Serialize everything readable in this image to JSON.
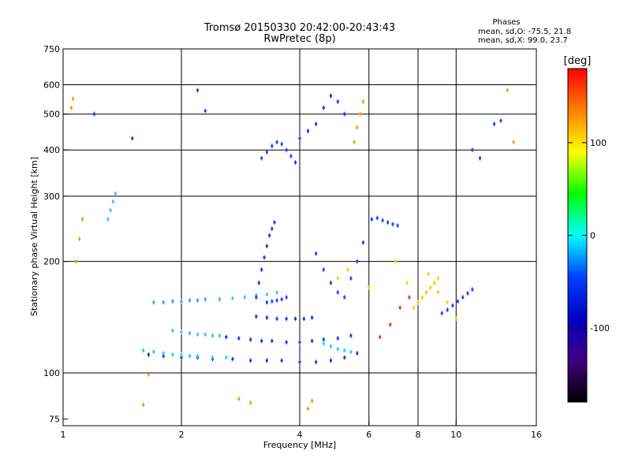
{
  "chart_data": {
    "type": "scatter",
    "title": "Tromsø 20150330 20:42:00-20:43:43",
    "subtitle": "RwPretec (8p)",
    "xlabel": "Frequency [MHz]",
    "ylabel": "Stationary phase Virtual Height [km]",
    "x_scale": "log",
    "y_scale": "log",
    "xlim": [
      1,
      16
    ],
    "ylim": [
      72,
      750
    ],
    "x_ticks": [
      1,
      2,
      4,
      6,
      8,
      10,
      16
    ],
    "y_ticks": [
      75,
      100,
      200,
      300,
      400,
      500,
      600,
      750
    ],
    "x_gridlines": [
      2,
      4,
      6,
      8,
      10
    ],
    "y_gridlines": [
      100,
      200,
      300,
      400,
      500,
      600
    ],
    "grid": true,
    "stats": {
      "heading": "Phases",
      "line_o": "mean, sd,O: -75.5, 21.8",
      "line_x": "mean, sd,X:  99.0, 23.7"
    },
    "colorbar": {
      "label": "[deg]",
      "range": [
        -180,
        180
      ],
      "ticks": [
        100,
        0,
        -100
      ],
      "colors": [
        "#ff0000",
        "#ff8000",
        "#ffff00",
        "#00ff00",
        "#00ffff",
        "#0040ff",
        "#0000c0",
        "#400080",
        "#000000"
      ]
    },
    "series": [
      {
        "color": "#1a33ff",
        "x": [
          1.65,
          1.8,
          2.0,
          2.2,
          2.4,
          2.7,
          3.0,
          3.3,
          3.6,
          4.0,
          4.4,
          4.8,
          5.2,
          5.6
        ],
        "y": [
          112,
          111,
          110,
          110,
          109,
          109,
          108,
          108,
          108,
          107,
          107,
          108,
          110,
          113
        ]
      },
      {
        "color": "#20d0ff",
        "x": [
          1.6,
          1.7,
          1.8,
          1.9,
          2.0,
          2.1,
          2.2,
          2.4,
          2.6
        ],
        "y": [
          115,
          114,
          113,
          112,
          112,
          111,
          111,
          110,
          110
        ]
      },
      {
        "color": "#1a33ff",
        "x": [
          2.6,
          2.8,
          3.0,
          3.2,
          3.4,
          3.7,
          4.0,
          4.3,
          4.6,
          5.0,
          5.4
        ],
        "y": [
          125,
          124,
          123,
          122,
          122,
          121,
          121,
          122,
          123,
          124,
          126
        ]
      },
      {
        "color": "#40c0ff",
        "x": [
          1.9,
          2.0,
          2.1,
          2.2,
          2.3,
          2.4,
          2.5
        ],
        "y": [
          130,
          129,
          128,
          127,
          127,
          126,
          126
        ]
      },
      {
        "color": "#1a33ff",
        "x": [
          3.1,
          3.3,
          3.5,
          3.7,
          3.9,
          4.1,
          4.3
        ],
        "y": [
          142,
          141,
          140,
          140,
          140,
          140,
          141
        ]
      },
      {
        "color": "#30a0ff",
        "x": [
          1.7,
          1.8,
          1.9,
          2.0,
          2.1,
          2.2,
          2.3,
          2.5
        ],
        "y": [
          155,
          155,
          156,
          156,
          157,
          157,
          158,
          158
        ]
      },
      {
        "color": "#40c0ff",
        "x": [
          2.5,
          2.7,
          2.9,
          3.1,
          3.3,
          3.5
        ],
        "y": [
          158,
          159,
          160,
          162,
          163,
          165
        ]
      },
      {
        "color": "#2040ff",
        "x": [
          3.3,
          3.4,
          3.5,
          3.6,
          3.7
        ],
        "y": [
          155,
          156,
          157,
          158,
          160
        ]
      },
      {
        "color": "#1a33ff",
        "x": [
          3.1,
          3.15,
          3.2,
          3.25,
          3.3,
          3.35,
          3.4,
          3.45
        ],
        "y": [
          160,
          175,
          190,
          205,
          220,
          235,
          245,
          255
        ]
      },
      {
        "color": "#2040ff",
        "x": [
          3.2,
          3.3,
          3.4,
          3.5,
          3.6,
          3.7,
          3.8,
          3.9
        ],
        "y": [
          380,
          395,
          410,
          420,
          415,
          400,
          385,
          370
        ]
      },
      {
        "color": "#1a33ff",
        "x": [
          4.0,
          4.2,
          4.4,
          4.6,
          4.8,
          5.0,
          5.2
        ],
        "y": [
          430,
          450,
          470,
          520,
          560,
          540,
          500
        ]
      },
      {
        "color": "#ff9900",
        "x": [
          5.5,
          5.6,
          5.7,
          5.8
        ],
        "y": [
          420,
          460,
          500,
          540
        ]
      },
      {
        "color": "#ffcc00",
        "x": [
          7.8,
          8.0,
          8.2,
          8.4,
          8.6,
          8.8,
          9.0
        ],
        "y": [
          150,
          155,
          160,
          165,
          170,
          175,
          180
        ]
      },
      {
        "color": "#2040ff",
        "x": [
          9.2,
          9.5,
          9.8,
          10.1,
          10.4,
          10.7,
          11.0
        ],
        "y": [
          145,
          148,
          152,
          156,
          160,
          164,
          168
        ]
      },
      {
        "color": "#ff3300",
        "x": [
          6.4,
          6.8,
          7.2,
          7.6
        ],
        "y": [
          125,
          135,
          150,
          160
        ]
      },
      {
        "color": "#2040ff",
        "x": [
          6.1,
          6.3,
          6.5,
          6.7,
          6.9,
          7.1
        ],
        "y": [
          260,
          262,
          258,
          255,
          252,
          250
        ]
      },
      {
        "color": "#ff9900",
        "x": [
          1.05,
          1.06,
          1.08,
          1.1,
          1.12
        ],
        "y": [
          520,
          550,
          200,
          230,
          260
        ]
      },
      {
        "color": "#40c0ff",
        "x": [
          1.3,
          1.32,
          1.34,
          1.36
        ],
        "y": [
          260,
          275,
          290,
          305
        ]
      },
      {
        "color": "#ff9900",
        "x": [
          1.6,
          1.65,
          4.2,
          4.3,
          13.5,
          14.0,
          2.8,
          3.0
        ],
        "y": [
          82,
          99,
          80,
          84,
          580,
          420,
          85,
          83
        ]
      },
      {
        "color": "#2040ff",
        "x": [
          1.2,
          1.5,
          2.2,
          2.3,
          12.5,
          13.0,
          11.0,
          11.5
        ],
        "y": [
          500,
          430,
          580,
          510,
          470,
          480,
          400,
          380
        ]
      },
      {
        "color": "#ffcc00",
        "x": [
          5.0,
          5.3,
          6.0,
          7.0,
          7.5,
          8.5,
          9.0,
          9.5,
          10.0
        ],
        "y": [
          180,
          190,
          170,
          200,
          175,
          185,
          165,
          155,
          140
        ]
      },
      {
        "color": "#20d0ff",
        "x": [
          4.6,
          4.8,
          5.0,
          5.2,
          5.4
        ],
        "y": [
          120,
          118,
          116,
          115,
          114
        ]
      },
      {
        "color": "#2040ff",
        "x": [
          4.4,
          4.6,
          4.8,
          5.0,
          5.2,
          5.4,
          5.6,
          5.8
        ],
        "y": [
          210,
          190,
          175,
          165,
          160,
          180,
          200,
          225
        ]
      }
    ]
  }
}
